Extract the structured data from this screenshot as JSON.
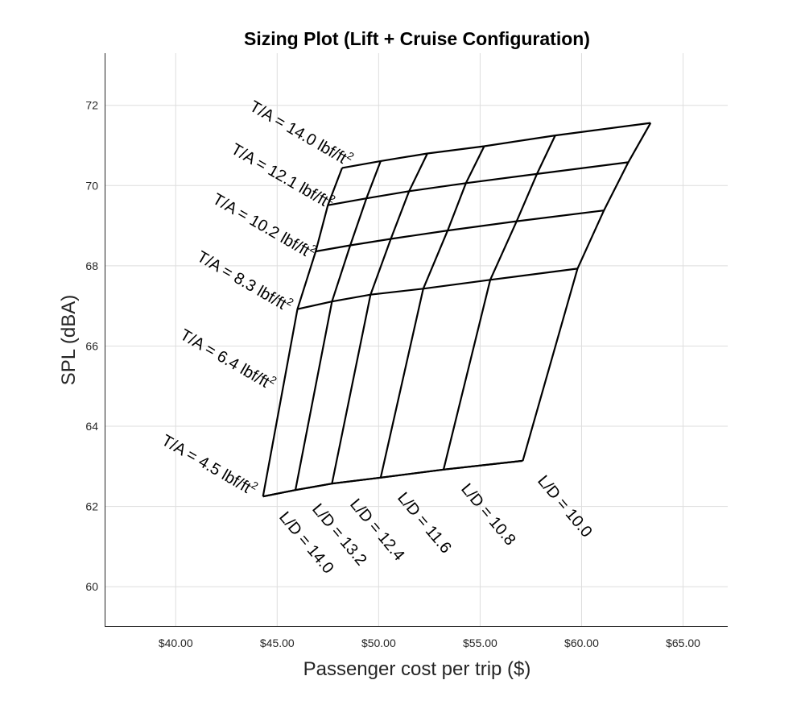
{
  "chart_data": {
    "type": "line",
    "title": "Sizing Plot (Lift + Cruise Configuration)",
    "xlabel": "Passenger cost per trip ($)",
    "ylabel": "SPL (dBA)",
    "xlim": [
      36.5,
      67.2
    ],
    "ylim": [
      59.0,
      73.3
    ],
    "xticks": [
      40,
      45,
      50,
      55,
      60,
      65
    ],
    "xtick_labels": [
      "$40.00",
      "$45.00",
      "$50.00",
      "$55.00",
      "$60.00",
      "$65.00"
    ],
    "yticks": [
      60,
      62,
      64,
      66,
      68,
      70,
      72
    ],
    "ytick_labels": [
      "60",
      "62",
      "64",
      "66",
      "68",
      "70",
      "72"
    ],
    "grid": true,
    "ta_labels": [
      "T/A = 4.5 lbf/ft",
      "T/A = 6.4 lbf/ft",
      "T/A = 8.3 lbf/ft",
      "T/A = 10.2 lbf/ft",
      "T/A = 12.1 lbf/ft",
      "T/A = 14.0 lbf/ft"
    ],
    "ld_labels": [
      "L/D = 14.0",
      "L/D = 13.2",
      "L/D = 12.4",
      "L/D = 11.6",
      "L/D = 10.8",
      "L/D = 10.0"
    ],
    "superscript": "2",
    "series": [
      {
        "name": "T/A = 4.5 lbf/ft²",
        "x": [
          44.3,
          45.9,
          47.7,
          50.1,
          53.2,
          57.1
        ],
        "y": [
          62.25,
          62.41,
          62.57,
          62.72,
          62.92,
          63.14
        ]
      },
      {
        "name": "T/A = 6.4 lbf/ft²",
        "x": [
          44.3,
          45.9,
          47.7,
          50.1,
          53.2,
          57.1
        ],
        "y": [
          62.25,
          62.41,
          62.57,
          62.72,
          62.92,
          63.14
        ]
      },
      {
        "name": "T/A = 8.3 lbf/ft²",
        "x": [
          46.0,
          47.7,
          49.6,
          52.2,
          55.5,
          59.8
        ],
        "y": [
          66.92,
          67.11,
          67.28,
          67.43,
          67.65,
          67.93
        ]
      },
      {
        "name": "T/A = 10.2 lbf/ft²",
        "x": [
          46.9,
          48.6,
          50.6,
          53.4,
          56.8,
          61.1
        ],
        "y": [
          68.36,
          68.51,
          68.67,
          68.88,
          69.11,
          69.38
        ]
      },
      {
        "name": "T/A = 12.1 lbf/ft²",
        "x": [
          47.5,
          49.4,
          51.5,
          54.3,
          57.8,
          62.3
        ],
        "y": [
          69.51,
          69.68,
          69.86,
          70.06,
          70.29,
          70.58
        ]
      },
      {
        "name": "T/A = 14.0 lbf/ft²",
        "x": [
          48.2,
          50.1,
          52.4,
          55.2,
          58.7,
          63.4
        ],
        "y": [
          70.44,
          70.61,
          70.8,
          70.98,
          71.25,
          71.56
        ]
      }
    ]
  }
}
